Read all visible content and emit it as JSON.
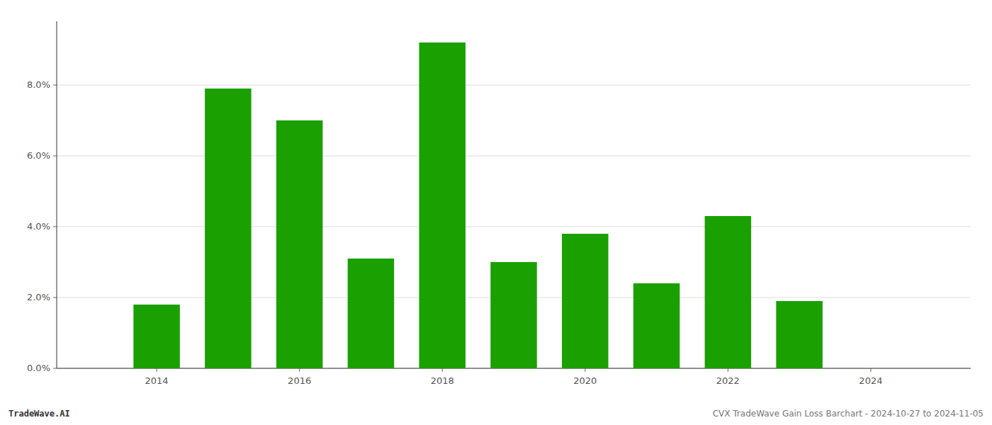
{
  "chart_data": {
    "type": "bar",
    "x": [
      2014,
      2015,
      2016,
      2017,
      2018,
      2019,
      2020,
      2021,
      2022,
      2023
    ],
    "values": [
      0.018,
      0.079,
      0.07,
      0.031,
      0.092,
      0.03,
      0.038,
      0.024,
      0.043,
      0.019
    ],
    "color": "#1aA000",
    "xlim": [
      2012.6,
      2025.4
    ],
    "xticks": [
      2014,
      2016,
      2018,
      2020,
      2022,
      2024
    ],
    "ylim": [
      0,
      0.098
    ],
    "yticks": [
      {
        "value": 0.0,
        "label": "0.0%"
      },
      {
        "value": 0.02,
        "label": "2.0%"
      },
      {
        "value": 0.04,
        "label": "4.0%"
      },
      {
        "value": 0.06,
        "label": "6.0%"
      },
      {
        "value": 0.08,
        "label": "8.0%"
      }
    ],
    "grid": true,
    "annotations": [
      "TradeWave.AI",
      "CVX TradeWave Gain Loss Barchart - 2024-10-27 to 2024-11-05"
    ]
  }
}
